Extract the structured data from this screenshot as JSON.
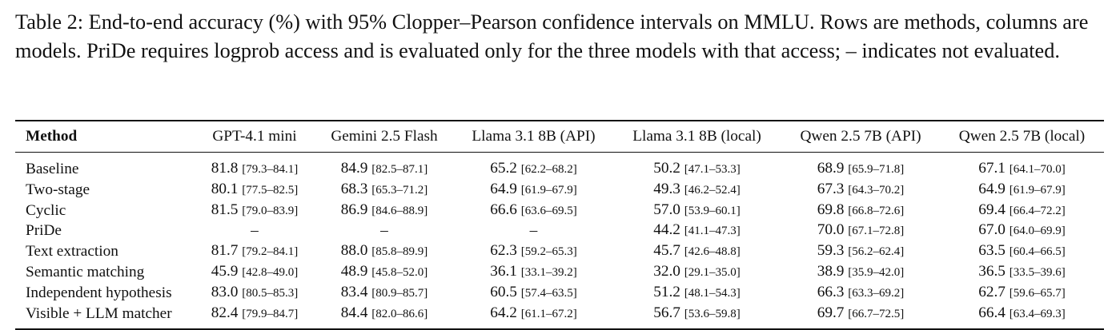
{
  "caption": "Table 2: End-to-end accuracy (%) with 95% Clopper–Pearson confidence intervals on MMLU. Rows are methods, columns are models. PriDe requires logprob access and is evaluated only for the three models with that access; – indicates not evaluated.",
  "table": {
    "method_header": "Method",
    "columns": [
      "GPT-4.1 mini",
      "Gemini 2.5 Flash",
      "Llama 3.1 8B (API)",
      "Llama 3.1 8B (local)",
      "Qwen 2.5 7B (API)",
      "Qwen 2.5 7B (local)"
    ],
    "rows": [
      {
        "method": "Baseline",
        "cells": [
          {
            "value": "81.8",
            "ci": "[79.3–84.1]"
          },
          {
            "value": "84.9",
            "ci": "[82.5–87.1]"
          },
          {
            "value": "65.2",
            "ci": "[62.2–68.2]"
          },
          {
            "value": "50.2",
            "ci": "[47.1–53.3]"
          },
          {
            "value": "68.9",
            "ci": "[65.9–71.8]"
          },
          {
            "value": "67.1",
            "ci": "[64.1–70.0]"
          }
        ]
      },
      {
        "method": "Two-stage",
        "cells": [
          {
            "value": "80.1",
            "ci": "[77.5–82.5]"
          },
          {
            "value": "68.3",
            "ci": "[65.3–71.2]"
          },
          {
            "value": "64.9",
            "ci": "[61.9–67.9]"
          },
          {
            "value": "49.3",
            "ci": "[46.2–52.4]"
          },
          {
            "value": "67.3",
            "ci": "[64.3–70.2]"
          },
          {
            "value": "64.9",
            "ci": "[61.9–67.9]"
          }
        ]
      },
      {
        "method": "Cyclic",
        "cells": [
          {
            "value": "81.5",
            "ci": "[79.0–83.9]"
          },
          {
            "value": "86.9",
            "ci": "[84.6–88.9]"
          },
          {
            "value": "66.6",
            "ci": "[63.6–69.5]"
          },
          {
            "value": "57.0",
            "ci": "[53.9–60.1]"
          },
          {
            "value": "69.8",
            "ci": "[66.8–72.6]"
          },
          {
            "value": "69.4",
            "ci": "[66.4–72.2]"
          }
        ]
      },
      {
        "method": "PriDe",
        "cells": [
          {
            "value": "–",
            "ci": ""
          },
          {
            "value": "–",
            "ci": ""
          },
          {
            "value": "–",
            "ci": ""
          },
          {
            "value": "44.2",
            "ci": "[41.1–47.3]"
          },
          {
            "value": "70.0",
            "ci": "[67.1–72.8]"
          },
          {
            "value": "67.0",
            "ci": "[64.0–69.9]"
          }
        ]
      },
      {
        "method": "Text extraction",
        "cells": [
          {
            "value": "81.7",
            "ci": "[79.2–84.1]"
          },
          {
            "value": "88.0",
            "ci": "[85.8–89.9]"
          },
          {
            "value": "62.3",
            "ci": "[59.2–65.3]"
          },
          {
            "value": "45.7",
            "ci": "[42.6–48.8]"
          },
          {
            "value": "59.3",
            "ci": "[56.2–62.4]"
          },
          {
            "value": "63.5",
            "ci": "[60.4–66.5]"
          }
        ]
      },
      {
        "method": "Semantic matching",
        "cells": [
          {
            "value": "45.9",
            "ci": "[42.8–49.0]"
          },
          {
            "value": "48.9",
            "ci": "[45.8–52.0]"
          },
          {
            "value": "36.1",
            "ci": "[33.1–39.2]"
          },
          {
            "value": "32.0",
            "ci": "[29.1–35.0]"
          },
          {
            "value": "38.9",
            "ci": "[35.9–42.0]"
          },
          {
            "value": "36.5",
            "ci": "[33.5–39.6]"
          }
        ]
      },
      {
        "method": "Independent hypothesis",
        "cells": [
          {
            "value": "83.0",
            "ci": "[80.5–85.3]"
          },
          {
            "value": "83.4",
            "ci": "[80.9–85.7]"
          },
          {
            "value": "60.5",
            "ci": "[57.4–63.5]"
          },
          {
            "value": "51.2",
            "ci": "[48.1–54.3]"
          },
          {
            "value": "66.3",
            "ci": "[63.3–69.2]"
          },
          {
            "value": "62.7",
            "ci": "[59.6–65.7]"
          }
        ]
      },
      {
        "method": "Visible + LLM matcher",
        "cells": [
          {
            "value": "82.4",
            "ci": "[79.9–84.7]"
          },
          {
            "value": "84.4",
            "ci": "[82.0–86.6]"
          },
          {
            "value": "64.2",
            "ci": "[61.1–67.2]"
          },
          {
            "value": "56.7",
            "ci": "[53.6–59.8]"
          },
          {
            "value": "69.7",
            "ci": "[66.7–72.5]"
          },
          {
            "value": "66.4",
            "ci": "[63.4–69.3]"
          }
        ]
      }
    ]
  }
}
